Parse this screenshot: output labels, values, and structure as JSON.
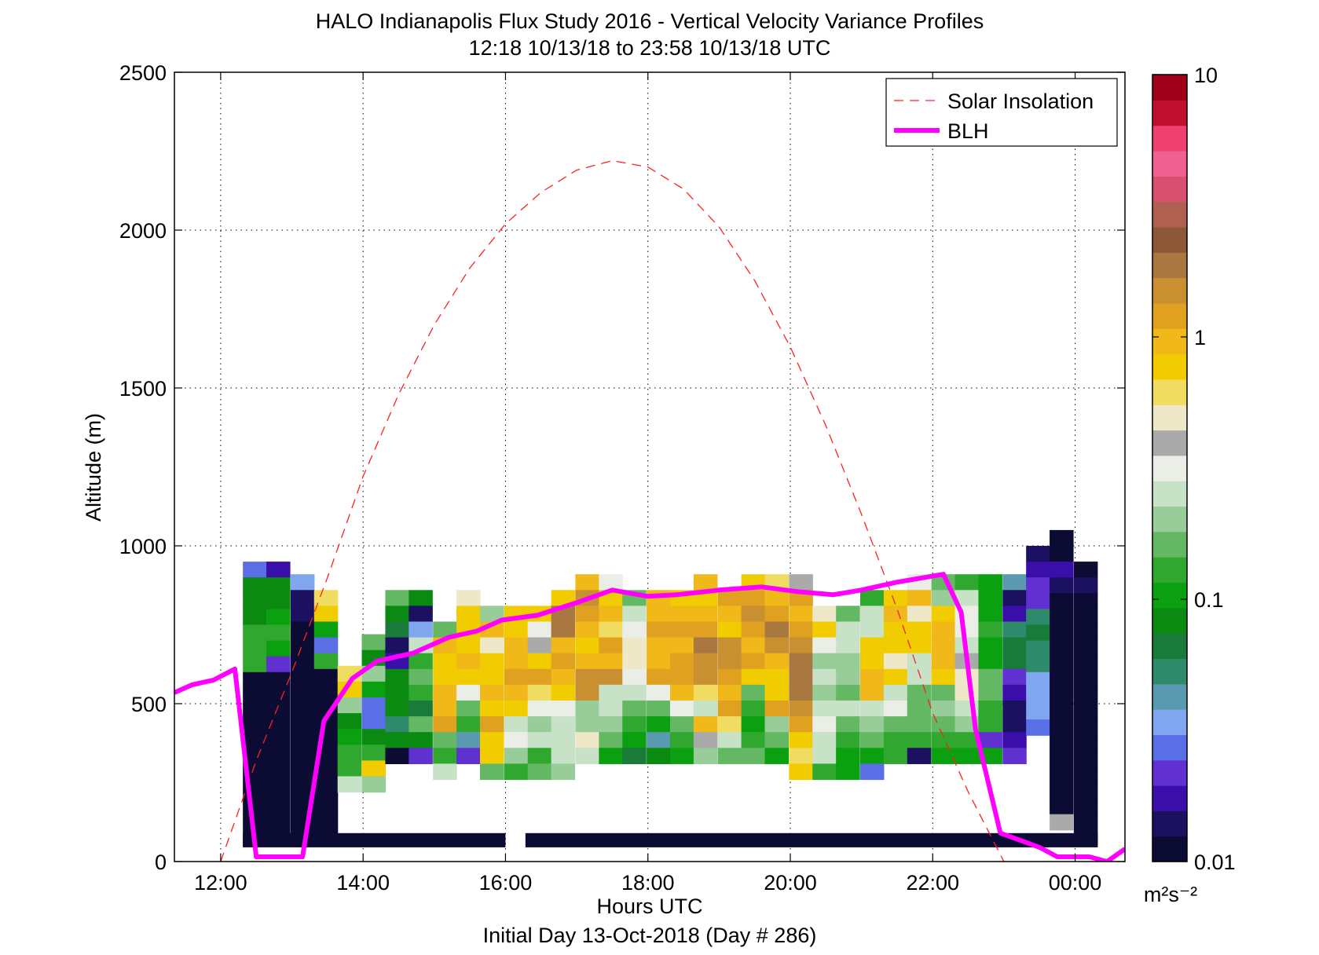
{
  "chart_data": {
    "type": "heatmap",
    "title": "HALO Indianapolis Flux Study 2016 - Vertical Velocity Variance Profiles",
    "subtitle": "12:18 10/13/18 to 23:58 10/13/18  UTC",
    "xlabel": "Hours UTC",
    "xlabel2": "Initial Day 13-Oct-2018 (Day # 286)",
    "ylabel": "Altitude (m)",
    "xlim": [
      11.35,
      24.7
    ],
    "ylim": [
      0,
      2500
    ],
    "x_ticks": [
      12,
      14,
      16,
      18,
      20,
      22,
      24
    ],
    "x_tick_labels": [
      "12:00",
      "14:00",
      "16:00",
      "18:00",
      "20:00",
      "22:00",
      "00:00"
    ],
    "y_ticks": [
      0,
      500,
      1000,
      1500,
      2000,
      2500
    ],
    "y_tick_labels": [
      "0",
      "500",
      "1000",
      "1500",
      "2000",
      "2500"
    ],
    "grid": true,
    "legend_position": "top-right",
    "colorbar": {
      "scale": "log",
      "min": 0.01,
      "max": 10,
      "ticks": [
        0.01,
        0.1,
        1,
        10
      ],
      "tick_labels": [
        "0.01",
        "0.1",
        "1",
        "10"
      ],
      "units": "m²s⁻²",
      "colors": [
        "#0b0b33",
        "#1c1060",
        "#3a0ea8",
        "#6030d0",
        "#5a6ee6",
        "#7fa6ee",
        "#5a9ab0",
        "#2e8a6a",
        "#1a7a3a",
        "#0a8a10",
        "#0aa010",
        "#30a830",
        "#64b864",
        "#98cc98",
        "#c8e2c8",
        "#eaeee6",
        "#aaaaaa",
        "#eee8c8",
        "#f0dc60",
        "#f0cc00",
        "#f0b818",
        "#e0a020",
        "#c89030",
        "#a87840",
        "#8c5838",
        "#b06050",
        "#d85070",
        "#f06090",
        "#f04070",
        "#c01030",
        "#a0001a"
      ]
    },
    "series": [
      {
        "name": "Solar Insolation",
        "color": "#ff2020",
        "style": "dashed",
        "x": [
          12.0,
          12.5,
          13.0,
          13.5,
          14.0,
          14.5,
          15.0,
          15.5,
          16.0,
          16.5,
          17.0,
          17.5,
          18.0,
          18.5,
          19.0,
          19.5,
          20.0,
          20.5,
          21.0,
          21.5,
          22.0,
          22.5,
          23.0
        ],
        "y": [
          0,
          320,
          600,
          900,
          1220,
          1480,
          1700,
          1880,
          2020,
          2120,
          2190,
          2220,
          2200,
          2130,
          2010,
          1840,
          1630,
          1380,
          1100,
          800,
          470,
          220,
          0
        ]
      },
      {
        "name": "BLH",
        "color": "#ff00ff",
        "style": "solid",
        "x": [
          11.35,
          11.6,
          11.9,
          12.2,
          12.5,
          12.95,
          13.15,
          13.45,
          13.85,
          14.2,
          14.7,
          15.2,
          15.6,
          15.95,
          16.45,
          17.0,
          17.5,
          18.0,
          18.4,
          19.0,
          19.6,
          20.1,
          20.6,
          21.0,
          21.5,
          22.15,
          22.4,
          22.6,
          22.95,
          23.2,
          23.5,
          23.75,
          24.0,
          24.2,
          24.45,
          24.7
        ],
        "y": [
          535,
          560,
          575,
          610,
          15,
          15,
          15,
          445,
          580,
          635,
          660,
          710,
          730,
          765,
          780,
          820,
          860,
          840,
          845,
          860,
          870,
          855,
          845,
          860,
          885,
          910,
          790,
          420,
          90,
          70,
          45,
          15,
          15,
          15,
          0,
          40
        ]
      }
    ],
    "heatmap": {
      "gap_x": [
        16.0,
        16.28
      ],
      "bottom_band_y": [
        45,
        90
      ],
      "columns": [
        {
          "x": 12.48,
          "top": 950,
          "cells": [
            4,
            9,
            9,
            9,
            11,
            11,
            11,
            0,
            0,
            0,
            0,
            0,
            0,
            0,
            0,
            0,
            0,
            0
          ]
        },
        {
          "x": 12.81,
          "top": 950,
          "cells": [
            2,
            9,
            9,
            10,
            11,
            10,
            3,
            0,
            0,
            0,
            0,
            0,
            0,
            0,
            0,
            0,
            0,
            0
          ]
        },
        {
          "x": 13.15,
          "top": 910,
          "cells": [
            5,
            1,
            1,
            0,
            0,
            0,
            0,
            0,
            0,
            0,
            0,
            0,
            0,
            0,
            0,
            0,
            0
          ]
        },
        {
          "x": 13.48,
          "top": 860,
          "cells": [
            18,
            19,
            10,
            4,
            11,
            0,
            0,
            0,
            0,
            0,
            0,
            0,
            0,
            0,
            0,
            0
          ]
        },
        {
          "x": 13.81,
          "top": 620,
          "cells": [
            18,
            19,
            13,
            9,
            10,
            11,
            11,
            14
          ]
        },
        {
          "x": 14.15,
          "top": 720,
          "cells": [
            12,
            9,
            13,
            10,
            4,
            4,
            9,
            11,
            19,
            13
          ]
        },
        {
          "x": 14.48,
          "top": 860,
          "cells": [
            12,
            9,
            8,
            1,
            2,
            9,
            9,
            9,
            7,
            9,
            0
          ]
        },
        {
          "x": 14.81,
          "top": 860,
          "cells": [
            9,
            1,
            5,
            14,
            11,
            12,
            11,
            8,
            12,
            9,
            3
          ]
        },
        {
          "x": 15.15,
          "top": 760,
          "cells": [
            12,
            20,
            19,
            19,
            20,
            20,
            21,
            12,
            11,
            14
          ]
        },
        {
          "x": 15.48,
          "top": 860,
          "cells": [
            17,
            19,
            19,
            19,
            20,
            19,
            15,
            12,
            11,
            6,
            3
          ]
        },
        {
          "x": 15.81,
          "top": 810,
          "cells": [
            13,
            20,
            17,
            19,
            19,
            20,
            19,
            21,
            19,
            19,
            12
          ]
        },
        {
          "x": 16.15,
          "top": 810,
          "cells": [
            19,
            19,
            20,
            20,
            21,
            20,
            19,
            14,
            15,
            13,
            11
          ]
        },
        {
          "x": 16.48,
          "top": 810,
          "cells": [
            19,
            15,
            16,
            19,
            21,
            18,
            15,
            13,
            14,
            11,
            12
          ]
        },
        {
          "x": 16.81,
          "top": 860,
          "cells": [
            19,
            23,
            23,
            20,
            21,
            20,
            19,
            15,
            14,
            14,
            14,
            13
          ]
        },
        {
          "x": 17.15,
          "top": 910,
          "cells": [
            20,
            22,
            21,
            20,
            19,
            20,
            22,
            22,
            13,
            13,
            17,
            14
          ]
        },
        {
          "x": 17.48,
          "top": 910,
          "cells": [
            15,
            19,
            20,
            18,
            21,
            20,
            22,
            14,
            14,
            13,
            12,
            10
          ]
        },
        {
          "x": 17.81,
          "top": 860,
          "cells": [
            12,
            14,
            15,
            17,
            17,
            15,
            14,
            12,
            11,
            10,
            8
          ]
        },
        {
          "x": 18.15,
          "top": 860,
          "cells": [
            20,
            20,
            21,
            20,
            20,
            21,
            15,
            12,
            10,
            6,
            9
          ]
        },
        {
          "x": 18.48,
          "top": 860,
          "cells": [
            19,
            20,
            21,
            20,
            21,
            21,
            20,
            15,
            12,
            11,
            10
          ]
        },
        {
          "x": 18.81,
          "top": 910,
          "cells": [
            20,
            19,
            20,
            21,
            23,
            22,
            22,
            18,
            14,
            20,
            16,
            13
          ]
        },
        {
          "x": 19.15,
          "top": 860,
          "cells": [
            21,
            20,
            19,
            22,
            22,
            21,
            20,
            21,
            18,
            14,
            12
          ]
        },
        {
          "x": 19.48,
          "top": 910,
          "cells": [
            19,
            21,
            22,
            21,
            20,
            21,
            19,
            12,
            11,
            10,
            11,
            12
          ]
        },
        {
          "x": 19.81,
          "top": 910,
          "cells": [
            18,
            20,
            21,
            23,
            22,
            20,
            19,
            19,
            21,
            13,
            12,
            10
          ]
        },
        {
          "x": 20.15,
          "top": 910,
          "cells": [
            16,
            21,
            20,
            21,
            22,
            23,
            23,
            23,
            22,
            21,
            19,
            18,
            19
          ]
        },
        {
          "x": 20.48,
          "top": 810,
          "cells": [
            17,
            19,
            15,
            13,
            14,
            13,
            14,
            15,
            14,
            14,
            11
          ]
        },
        {
          "x": 20.81,
          "top": 810,
          "cells": [
            12,
            14,
            14,
            13,
            13,
            12,
            14,
            12,
            11,
            10,
            10
          ]
        },
        {
          "x": 21.15,
          "top": 860,
          "cells": [
            11,
            14,
            14,
            19,
            19,
            20,
            20,
            14,
            13,
            12,
            10,
            4
          ]
        },
        {
          "x": 21.48,
          "top": 860,
          "cells": [
            19,
            20,
            19,
            19,
            17,
            19,
            14,
            15,
            12,
            11,
            11
          ]
        },
        {
          "x": 21.81,
          "top": 910,
          "cells": [
            15,
            20,
            17,
            19,
            19,
            14,
            14,
            12,
            12,
            12,
            11,
            1
          ]
        },
        {
          "x": 22.15,
          "top": 910,
          "cells": [
            12,
            13,
            19,
            20,
            20,
            20,
            19,
            12,
            13,
            12,
            11,
            10
          ]
        },
        {
          "x": 22.48,
          "top": 910,
          "cells": [
            11,
            14,
            15,
            15,
            14,
            16,
            17,
            17,
            14,
            13,
            11,
            10
          ]
        },
        {
          "x": 22.81,
          "top": 910,
          "cells": [
            10,
            10,
            10,
            11,
            10,
            10,
            12,
            12,
            11,
            11,
            3,
            10
          ]
        },
        {
          "x": 23.15,
          "top": 910,
          "cells": [
            6,
            1,
            2,
            7,
            8,
            8,
            3,
            2,
            1,
            1,
            2,
            3
          ]
        },
        {
          "x": 23.48,
          "top": 1000,
          "cells": [
            1,
            2,
            3,
            3,
            7,
            8,
            7,
            7,
            5,
            5,
            5,
            4
          ]
        },
        {
          "x": 23.81,
          "top": 1050,
          "cells": [
            0,
            0,
            2,
            1,
            0,
            0,
            0,
            0,
            0,
            0,
            0,
            0,
            0,
            0,
            0,
            0,
            0,
            0,
            16
          ]
        },
        {
          "x": 24.15,
          "top": 950,
          "cells": [
            0,
            1,
            0,
            0,
            0,
            0,
            0,
            0,
            0,
            0,
            0,
            0,
            0,
            0,
            0,
            0,
            0,
            0
          ]
        }
      ]
    }
  }
}
